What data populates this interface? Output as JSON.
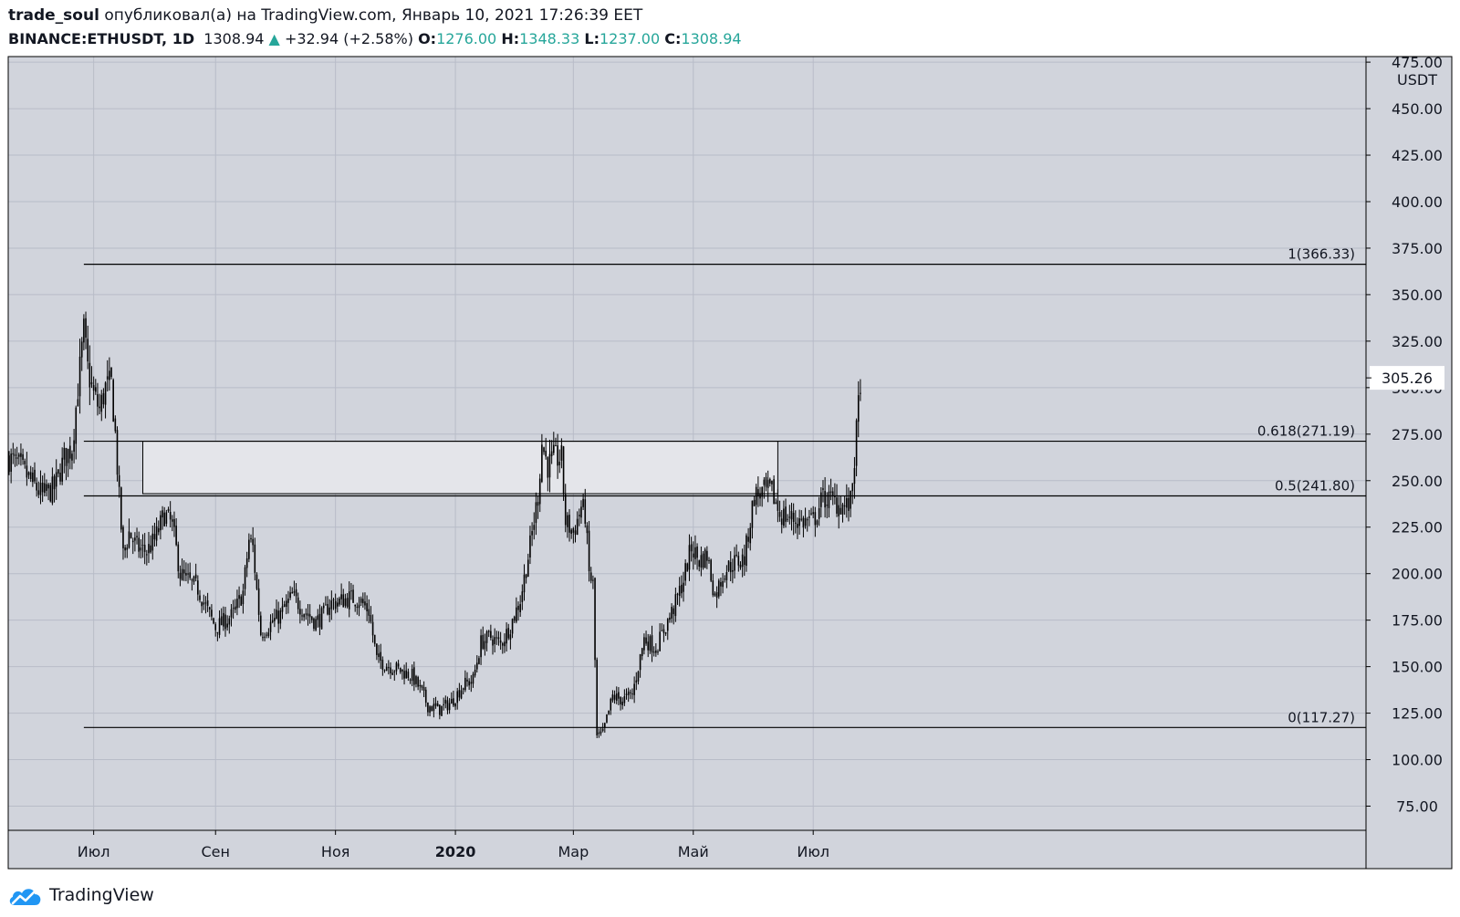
{
  "header": {
    "author": "trade_soul",
    "published_text": "опубликовал(а) на TradingView.com, Январь 10, 2021 17:26:39 EET",
    "symbol": "BINANCE:ETHUSDT, 1D",
    "last": "1308.94",
    "change": "+32.94 (+2.58%)",
    "o_label": "O:",
    "o_value": "1276.00",
    "h_label": "H:",
    "h_value": "1348.33",
    "l_label": "L:",
    "l_value": "1237.00",
    "c_label": "C:",
    "c_value": "1308.94",
    "up_arrow": "▲"
  },
  "footer": {
    "brand": "TradingView",
    "logo_icon": "tradingview-cloud-icon"
  },
  "colors": {
    "plot_bg": "#d1d4dc",
    "grid": "#b8bcc8",
    "candle": "#000000",
    "zone_fill": "#e4e5ea",
    "accent_green": "#26a69a"
  },
  "chart_data": {
    "type": "candlestick",
    "currency_label": "USDT",
    "ylim": [
      62,
      478
    ],
    "y_ticks": [
      75,
      100,
      125,
      150,
      175,
      200,
      225,
      250,
      275,
      300,
      325,
      350,
      375,
      400,
      425,
      450,
      475
    ],
    "y_tick_labels": [
      "75.00",
      "100.00",
      "125.00",
      "150.00",
      "175.00",
      "200.00",
      "225.00",
      "250.00",
      "275.00",
      "300.00",
      "325.00",
      "350.00",
      "375.00",
      "400.00",
      "425.00",
      "450.00",
      "475.00"
    ],
    "x_start": "2019-05-19",
    "x_end": "2020-07-25",
    "x_ticks": [
      {
        "date": "2019-07-01",
        "label": "Июл",
        "bold": false
      },
      {
        "date": "2019-09-01",
        "label": "Сен",
        "bold": false
      },
      {
        "date": "2019-11-01",
        "label": "Ноя",
        "bold": false
      },
      {
        "date": "2020-01-01",
        "label": "2020",
        "bold": true
      },
      {
        "date": "2020-03-01",
        "label": "Мар",
        "bold": false
      },
      {
        "date": "2020-05-01",
        "label": "Май",
        "bold": false
      },
      {
        "date": "2020-07-01",
        "label": "Июл",
        "bold": false
      }
    ],
    "fib_levels": [
      {
        "level": "1",
        "value": 366.33,
        "label": "1(366.33)"
      },
      {
        "level": "0.618",
        "value": 271.19,
        "label": "0.618(271.19)"
      },
      {
        "level": "0.5",
        "value": 241.8,
        "label": "0.5(241.80)"
      },
      {
        "level": "0",
        "value": 117.27,
        "label": "0(117.27)"
      }
    ],
    "fib_start_date": "2019-06-26",
    "fib_end_date": "2020-07-25",
    "zone": {
      "date_from": "2019-07-26",
      "date_to": "2020-06-13",
      "top": 271.19,
      "bottom": 243.0
    },
    "last_price": 305.26,
    "last_price_label": "305.26",
    "price_path": [
      [
        "2019-05-19",
        262
      ],
      [
        "2019-05-24",
        258
      ],
      [
        "2019-05-30",
        250
      ],
      [
        "2019-06-05",
        242
      ],
      [
        "2019-06-11",
        246
      ],
      [
        "2019-06-16",
        262
      ],
      [
        "2019-06-20",
        268
      ],
      [
        "2019-06-23",
        300
      ],
      [
        "2019-06-26",
        330
      ],
      [
        "2019-06-28",
        310
      ],
      [
        "2019-07-01",
        296
      ],
      [
        "2019-07-04",
        288
      ],
      [
        "2019-07-07",
        300
      ],
      [
        "2019-07-10",
        302
      ],
      [
        "2019-07-12",
        275
      ],
      [
        "2019-07-14",
        240
      ],
      [
        "2019-07-16",
        210
      ],
      [
        "2019-07-19",
        222
      ],
      [
        "2019-07-23",
        214
      ],
      [
        "2019-07-28",
        212
      ],
      [
        "2019-08-01",
        218
      ],
      [
        "2019-08-06",
        232
      ],
      [
        "2019-08-10",
        226
      ],
      [
        "2019-08-14",
        200
      ],
      [
        "2019-08-18",
        196
      ],
      [
        "2019-08-23",
        192
      ],
      [
        "2019-08-28",
        180
      ],
      [
        "2019-09-01",
        171
      ],
      [
        "2019-09-05",
        174
      ],
      [
        "2019-09-10",
        178
      ],
      [
        "2019-09-15",
        190
      ],
      [
        "2019-09-18",
        218
      ],
      [
        "2019-09-20",
        214
      ],
      [
        "2019-09-24",
        168
      ],
      [
        "2019-09-28",
        172
      ],
      [
        "2019-10-04",
        178
      ],
      [
        "2019-10-10",
        188
      ],
      [
        "2019-10-16",
        180
      ],
      [
        "2019-10-22",
        174
      ],
      [
        "2019-10-26",
        178
      ],
      [
        "2019-10-29",
        184
      ],
      [
        "2019-11-03",
        185
      ],
      [
        "2019-11-08",
        187
      ],
      [
        "2019-11-13",
        186
      ],
      [
        "2019-11-18",
        180
      ],
      [
        "2019-11-22",
        154
      ],
      [
        "2019-11-27",
        151
      ],
      [
        "2019-12-04",
        148
      ],
      [
        "2019-12-10",
        145
      ],
      [
        "2019-12-15",
        136
      ],
      [
        "2019-12-18",
        129
      ],
      [
        "2019-12-24",
        127
      ],
      [
        "2019-12-30",
        131
      ],
      [
        "2020-01-05",
        140
      ],
      [
        "2020-01-10",
        143
      ],
      [
        "2020-01-14",
        163
      ],
      [
        "2020-01-19",
        166
      ],
      [
        "2020-01-24",
        162
      ],
      [
        "2020-01-29",
        172
      ],
      [
        "2020-02-03",
        186
      ],
      [
        "2020-02-08",
        215
      ],
      [
        "2020-02-12",
        242
      ],
      [
        "2020-02-14",
        270
      ],
      [
        "2020-02-17",
        258
      ],
      [
        "2020-02-20",
        262
      ],
      [
        "2020-02-24",
        262
      ],
      [
        "2020-02-26",
        228
      ],
      [
        "2020-03-01",
        222
      ],
      [
        "2020-03-05",
        236
      ],
      [
        "2020-03-07",
        232
      ],
      [
        "2020-03-09",
        200
      ],
      [
        "2020-03-11",
        194
      ],
      [
        "2020-03-13",
        112
      ],
      [
        "2020-03-16",
        114
      ],
      [
        "2020-03-21",
        134
      ],
      [
        "2020-03-26",
        132
      ],
      [
        "2020-03-31",
        135
      ],
      [
        "2020-04-06",
        165
      ],
      [
        "2020-04-12",
        160
      ],
      [
        "2020-04-17",
        172
      ],
      [
        "2020-04-22",
        184
      ],
      [
        "2020-04-26",
        197
      ],
      [
        "2020-04-30",
        214
      ],
      [
        "2020-05-04",
        207
      ],
      [
        "2020-05-08",
        210
      ],
      [
        "2020-05-12",
        188
      ],
      [
        "2020-05-17",
        202
      ],
      [
        "2020-05-22",
        206
      ],
      [
        "2020-05-27",
        208
      ],
      [
        "2020-06-01",
        242
      ],
      [
        "2020-06-06",
        244
      ],
      [
        "2020-06-10",
        244
      ],
      [
        "2020-06-14",
        232
      ],
      [
        "2020-06-19",
        230
      ],
      [
        "2020-06-25",
        228
      ],
      [
        "2020-07-01",
        228
      ],
      [
        "2020-07-06",
        241
      ],
      [
        "2020-07-11",
        239
      ],
      [
        "2020-07-15",
        237
      ],
      [
        "2020-07-18",
        236
      ],
      [
        "2020-07-20",
        238
      ],
      [
        "2020-07-22",
        262
      ],
      [
        "2020-07-23",
        275
      ],
      [
        "2020-07-25",
        305.26
      ]
    ]
  }
}
